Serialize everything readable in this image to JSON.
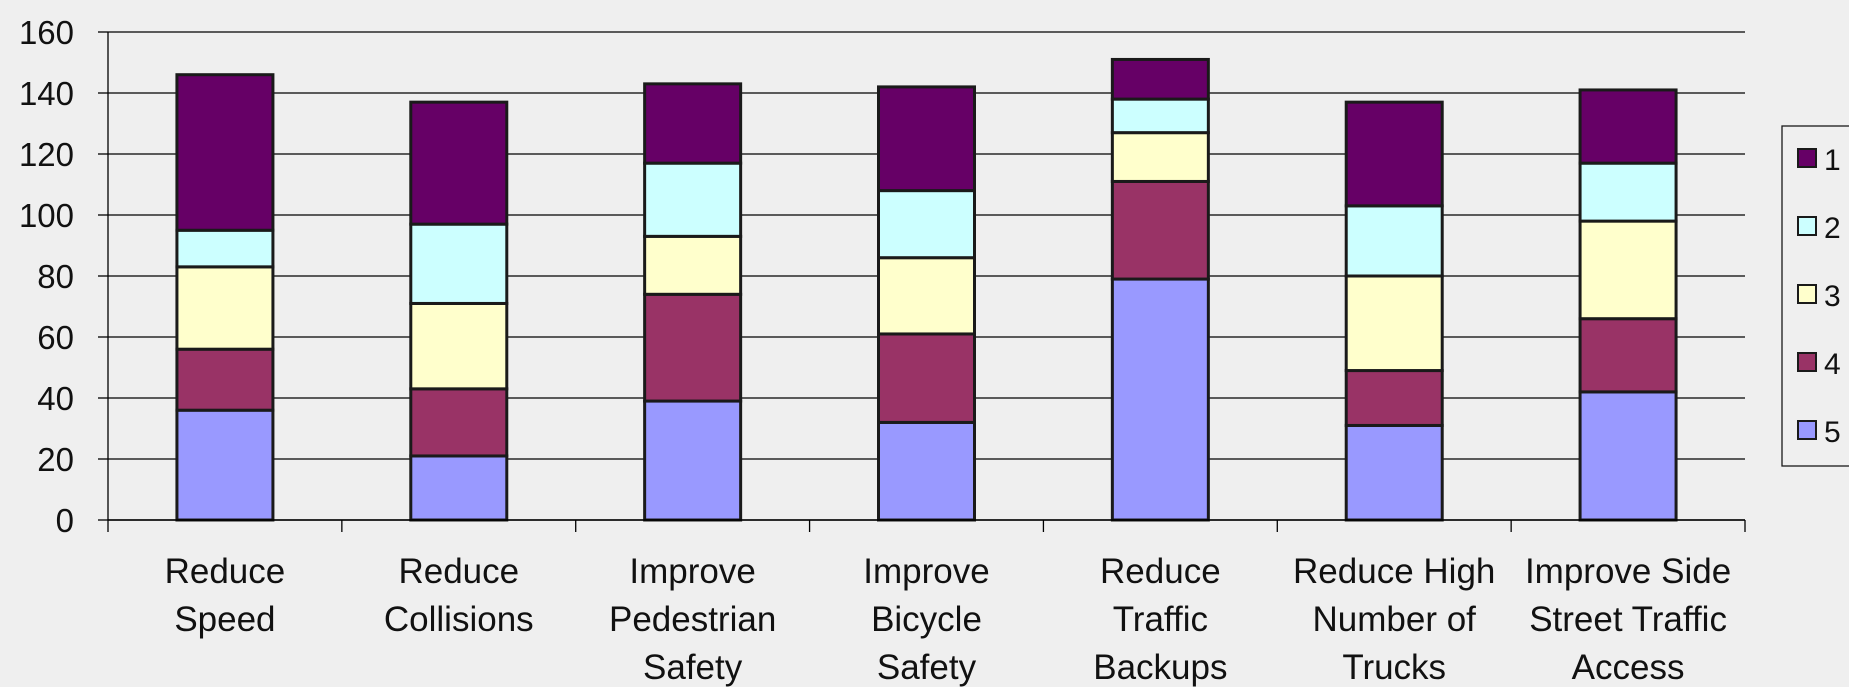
{
  "chart_data": {
    "type": "bar",
    "stacked": true,
    "title": "",
    "xlabel": "",
    "ylabel": "",
    "ylim": [
      0,
      160
    ],
    "yticks": [
      0,
      20,
      40,
      60,
      80,
      100,
      120,
      140,
      160
    ],
    "grid": true,
    "legend_position": "right",
    "categories": [
      [
        "Reduce",
        "Speed"
      ],
      [
        "Reduce",
        "Collisions"
      ],
      [
        "Improve",
        "Pedestrian",
        "Safety"
      ],
      [
        "Improve",
        "Bicycle",
        "Safety"
      ],
      [
        "Reduce",
        "Traffic",
        "Backups"
      ],
      [
        "Reduce High",
        "Number of",
        "Trucks"
      ],
      [
        "Improve Side",
        "Street Traffic",
        "Access"
      ]
    ],
    "series": [
      {
        "name": "5",
        "color": "#9999ff",
        "values": [
          36,
          21,
          39,
          32,
          79,
          31,
          42
        ]
      },
      {
        "name": "4",
        "color": "#993366",
        "values": [
          20,
          22,
          35,
          29,
          32,
          18,
          24
        ]
      },
      {
        "name": "3",
        "color": "#ffffcc",
        "values": [
          27,
          28,
          19,
          25,
          16,
          31,
          32
        ]
      },
      {
        "name": "2",
        "color": "#ccffff",
        "values": [
          12,
          26,
          24,
          22,
          11,
          23,
          19
        ]
      },
      {
        "name": "1",
        "color": "#660066",
        "values": [
          51,
          40,
          26,
          34,
          13,
          34,
          24
        ]
      }
    ],
    "legend_order": [
      "1",
      "2",
      "3",
      "4",
      "5"
    ]
  }
}
